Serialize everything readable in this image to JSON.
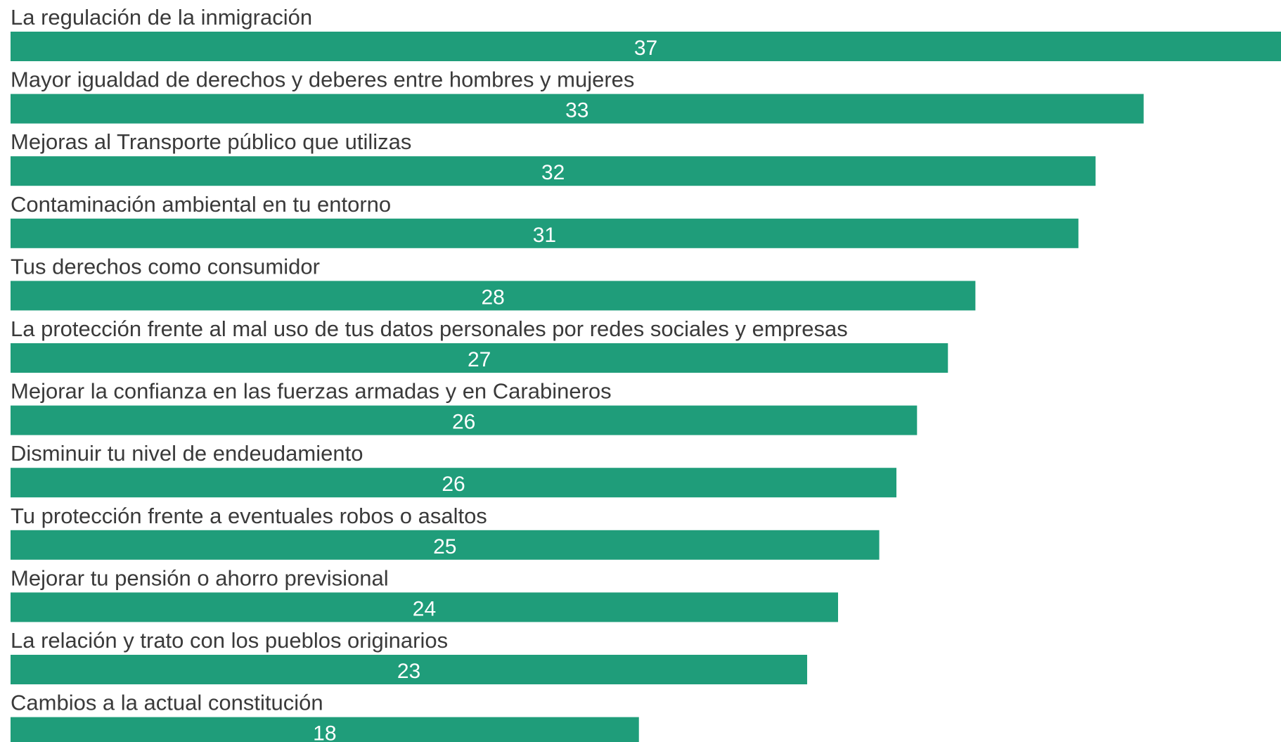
{
  "chart_data": {
    "type": "bar",
    "orientation": "horizontal",
    "title": "",
    "xlabel": "",
    "ylabel": "",
    "grid": false,
    "legend": "none",
    "bar_color": "#1f9d7a",
    "label_color": "#3a3a3a",
    "value_label_color": "#ffffff",
    "xlim": [
      0,
      37
    ],
    "categories": [
      "La regulación de la inmigración",
      "Mayor igualdad de derechos y deberes entre hombres y mujeres",
      "Mejoras al Transporte público que utilizas",
      "Contaminación ambiental en tu entorno",
      "Tus derechos como consumidor",
      "La protección frente al mal uso de tus datos personales por redes sociales y empresas",
      "Mejorar la confianza en las fuerzas armadas y en Carabineros",
      "Disminuir tu nivel de endeudamiento",
      "Tu protección frente a eventuales robos o asaltos",
      "Mejorar tu pensión o ahorro previsional",
      "La relación y trato con los pueblos originarios",
      "Cambios a la actual constitución"
    ],
    "values": [
      37,
      33,
      31.6,
      31.1,
      28.1,
      27.3,
      26.4,
      25.8,
      25.3,
      24.1,
      23.2,
      18.3
    ],
    "value_labels": [
      "37",
      "33",
      "32",
      "31",
      "28",
      "27",
      "26",
      "26",
      "25",
      "24",
      "23",
      "18"
    ]
  }
}
